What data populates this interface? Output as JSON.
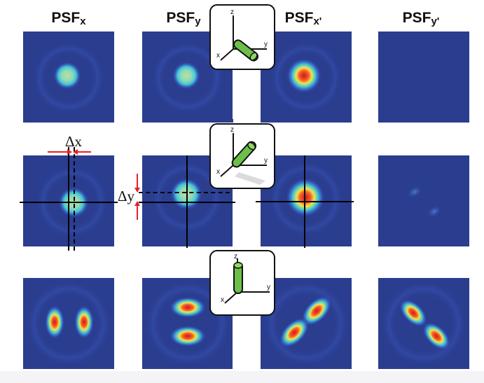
{
  "columns": [
    {
      "label": "PSF",
      "sub": "x"
    },
    {
      "label": "PSF",
      "sub": "y"
    },
    {
      "label": "PSF",
      "sub": "x'"
    },
    {
      "label": "PSF",
      "sub": "y'"
    }
  ],
  "axis_labels": {
    "x": "x",
    "y": "y",
    "z": "z"
  },
  "annotations": {
    "dx": "Δx",
    "dy": "Δy"
  },
  "colors": {
    "background": "#2a3d8f",
    "low": "#3b5cc8",
    "mid": "#3ec5d6",
    "high": "#f2e34a",
    "peak": "#d8141c",
    "rod": "#6cc04a",
    "arrow": "#e8202a"
  },
  "rows": [
    {
      "orientation": "in-plane rod along x-y diagonal"
    },
    {
      "orientation": "tilted rod"
    },
    {
      "orientation": "rod along z"
    }
  ]
}
